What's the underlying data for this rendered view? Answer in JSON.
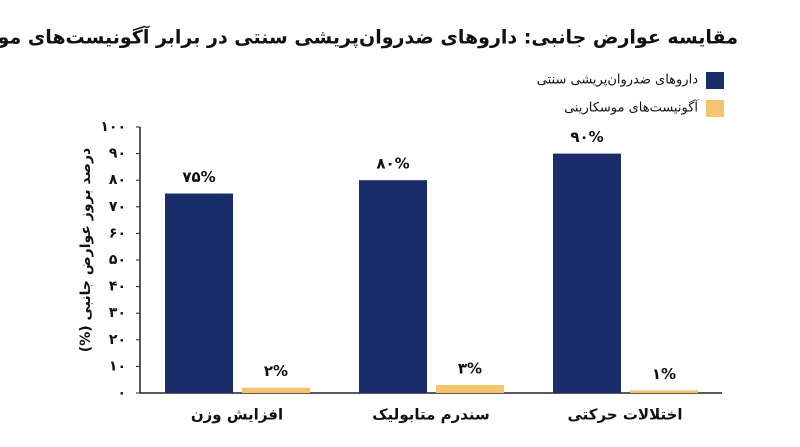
{
  "chart_data": {
    "type": "bar",
    "title": "مقایسه عوارض جانبی: داروهای ضدروان‌پریشی سنتی در برابر آگونیست‌های موسکارینی",
    "y_label": "درصد بروز عوارض جانبی (%)",
    "categories": [
      "افزایش وزن",
      "سندرم متابولیک",
      "اختلالات حرکتی"
    ],
    "series": [
      {
        "name": "داروهای ضدروان‌پریشی سنتی",
        "color": "#1a2d6b",
        "values": [
          75,
          80,
          90
        ],
        "value_labels": [
          "۷۵%",
          "۸۰%",
          "۹۰%"
        ]
      },
      {
        "name": "آگونیست‌های موسکارینی",
        "color": "#f5c46e",
        "values": [
          2,
          3,
          1
        ],
        "value_labels": [
          "۲%",
          "۳%",
          "۱%"
        ]
      }
    ],
    "ylim": [
      0,
      100
    ],
    "yticks": [
      {
        "value": 0,
        "label": "۰"
      },
      {
        "value": 10,
        "label": "۱۰"
      },
      {
        "value": 20,
        "label": "۲۰"
      },
      {
        "value": 30,
        "label": "۳۰"
      },
      {
        "value": 40,
        "label": "۴۰"
      },
      {
        "value": 50,
        "label": "۵۰"
      },
      {
        "value": 60,
        "label": "۶۰"
      },
      {
        "value": 70,
        "label": "۷۰"
      },
      {
        "value": 80,
        "label": "۸۰"
      },
      {
        "value": 90,
        "label": "۹۰"
      },
      {
        "value": 100,
        "label": "۱۰۰"
      }
    ],
    "grid": false,
    "legend": "top-right"
  }
}
